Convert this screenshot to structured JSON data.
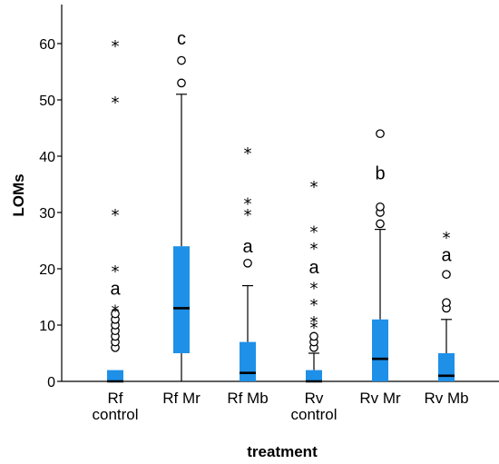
{
  "chart_data": {
    "type": "box",
    "xlabel": "treatment",
    "ylabel": "LOMs",
    "ylim": [
      0,
      65
    ],
    "yticks": [
      0,
      10,
      20,
      30,
      40,
      50,
      60
    ],
    "box_color": "#1e90e8",
    "groups": [
      {
        "label_lines": [
          "Rf",
          "control"
        ],
        "q1": 0,
        "median": 0,
        "q3": 2,
        "whisker_low": 0,
        "whisker_high": 2,
        "outliers": [
          6,
          7,
          8,
          9,
          10,
          11,
          12
        ],
        "extremes": [
          13,
          20,
          30,
          50,
          60
        ],
        "letter": "a",
        "letter_y": 16.5
      },
      {
        "label_lines": [
          "Rf Mr"
        ],
        "q1": 5,
        "median": 13,
        "q3": 24,
        "whisker_low": 0,
        "whisker_high": 51,
        "outliers": [
          53,
          57
        ],
        "extremes": [],
        "letter": "c",
        "letter_y": 61
      },
      {
        "label_lines": [
          "Rf Mb"
        ],
        "q1": 0,
        "median": 1.5,
        "q3": 7,
        "whisker_low": 0,
        "whisker_high": 17,
        "outliers": [
          21
        ],
        "extremes": [
          30,
          32,
          41
        ],
        "letter": "a",
        "letter_y": 24
      },
      {
        "label_lines": [
          "Rv",
          "control"
        ],
        "q1": 0,
        "median": 0,
        "q3": 2,
        "whisker_low": 0,
        "whisker_high": 5,
        "outliers": [
          6,
          7,
          8
        ],
        "extremes": [
          10,
          11,
          14,
          17,
          24,
          27,
          35
        ],
        "letter": "a",
        "letter_y": 20.3
      },
      {
        "label_lines": [
          "Rv Mr"
        ],
        "q1": 0,
        "median": 4,
        "q3": 11,
        "whisker_low": 0,
        "whisker_high": 27,
        "outliers": [
          28,
          30,
          31,
          44
        ],
        "extremes": [],
        "letter": "b",
        "letter_y": 37
      },
      {
        "label_lines": [
          "Rv Mb"
        ],
        "q1": 0,
        "median": 1,
        "q3": 5,
        "whisker_low": 0,
        "whisker_high": 11,
        "outliers": [
          13,
          14,
          19
        ],
        "extremes": [
          26
        ],
        "letter": "a",
        "letter_y": 22.5
      }
    ]
  }
}
